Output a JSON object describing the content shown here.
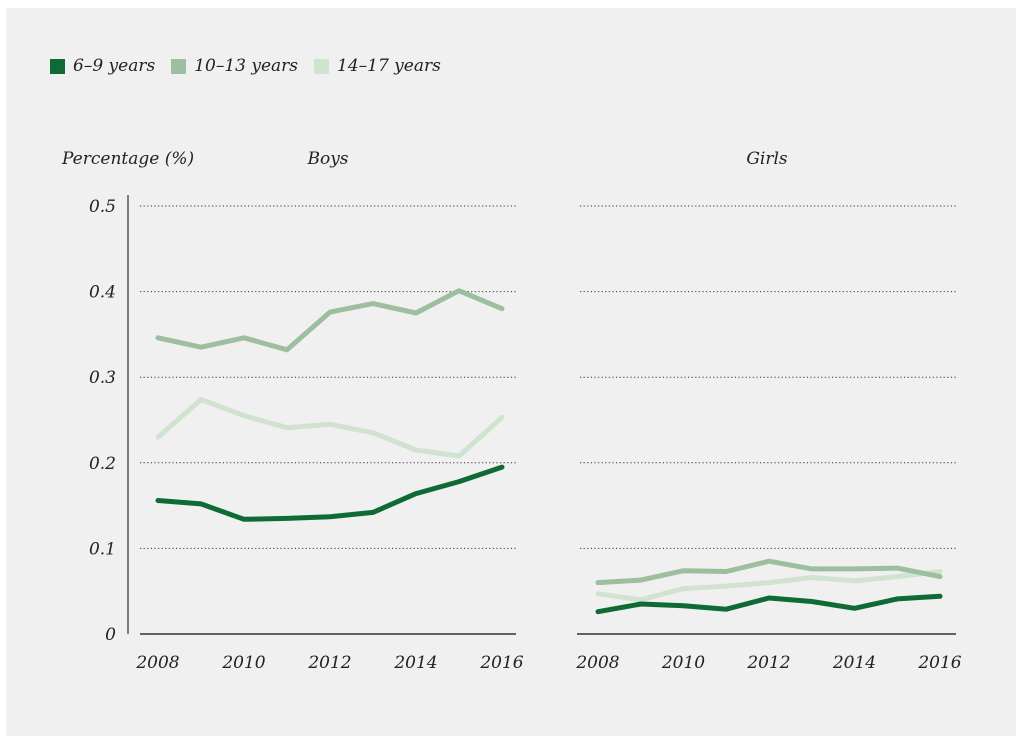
{
  "chart_data": [
    {
      "type": "line",
      "title": "Boys",
      "ylabel": "Percentage (%)",
      "xlabel": "",
      "x": [
        2008,
        2009,
        2010,
        2011,
        2012,
        2013,
        2014,
        2015,
        2016
      ],
      "xticks": [
        2008,
        2010,
        2012,
        2014,
        2016
      ],
      "ylim": [
        0,
        0.5
      ],
      "yticks": [
        "0",
        "0.1",
        "0.2",
        "0.3",
        "0.4",
        "0.5"
      ],
      "grid": "horizontal dotted",
      "legend": "top-left",
      "series": [
        {
          "name": "6–9 years",
          "color": "#0e6b35",
          "values": [
            0.156,
            0.152,
            0.134,
            0.135,
            0.137,
            0.142,
            0.164,
            0.178,
            0.195
          ]
        },
        {
          "name": "10–13 years",
          "color": "#9dbe9f",
          "values": [
            0.346,
            0.335,
            0.346,
            0.332,
            0.376,
            0.386,
            0.375,
            0.401,
            0.38
          ]
        },
        {
          "name": "14–17 years",
          "color": "#cfe3cf",
          "values": [
            0.23,
            0.274,
            0.255,
            0.241,
            0.245,
            0.235,
            0.215,
            0.208,
            0.253
          ]
        }
      ]
    },
    {
      "type": "line",
      "title": "Girls",
      "ylabel": "",
      "xlabel": "",
      "x": [
        2008,
        2009,
        2010,
        2011,
        2012,
        2013,
        2014,
        2015,
        2016
      ],
      "xticks": [
        2008,
        2010,
        2012,
        2014,
        2016
      ],
      "ylim": [
        0,
        0.5
      ],
      "grid": "horizontal dotted",
      "series": [
        {
          "name": "6–9 years",
          "color": "#0e6b35",
          "values": [
            0.026,
            0.035,
            0.033,
            0.029,
            0.042,
            0.038,
            0.03,
            0.041,
            0.044
          ]
        },
        {
          "name": "10–13 years",
          "color": "#9dbe9f",
          "values": [
            0.06,
            0.063,
            0.074,
            0.073,
            0.085,
            0.076,
            0.076,
            0.077,
            0.067
          ]
        },
        {
          "name": "14–17 years",
          "color": "#cfe3cf",
          "values": [
            0.047,
            0.04,
            0.053,
            0.056,
            0.06,
            0.066,
            0.062,
            0.067,
            0.073
          ]
        }
      ]
    }
  ],
  "legend": [
    {
      "label": "6–9 years",
      "color": "#0e6b35"
    },
    {
      "label": "10–13 years",
      "color": "#9dbe9f"
    },
    {
      "label": "14–17 years",
      "color": "#cfe3cf"
    }
  ]
}
